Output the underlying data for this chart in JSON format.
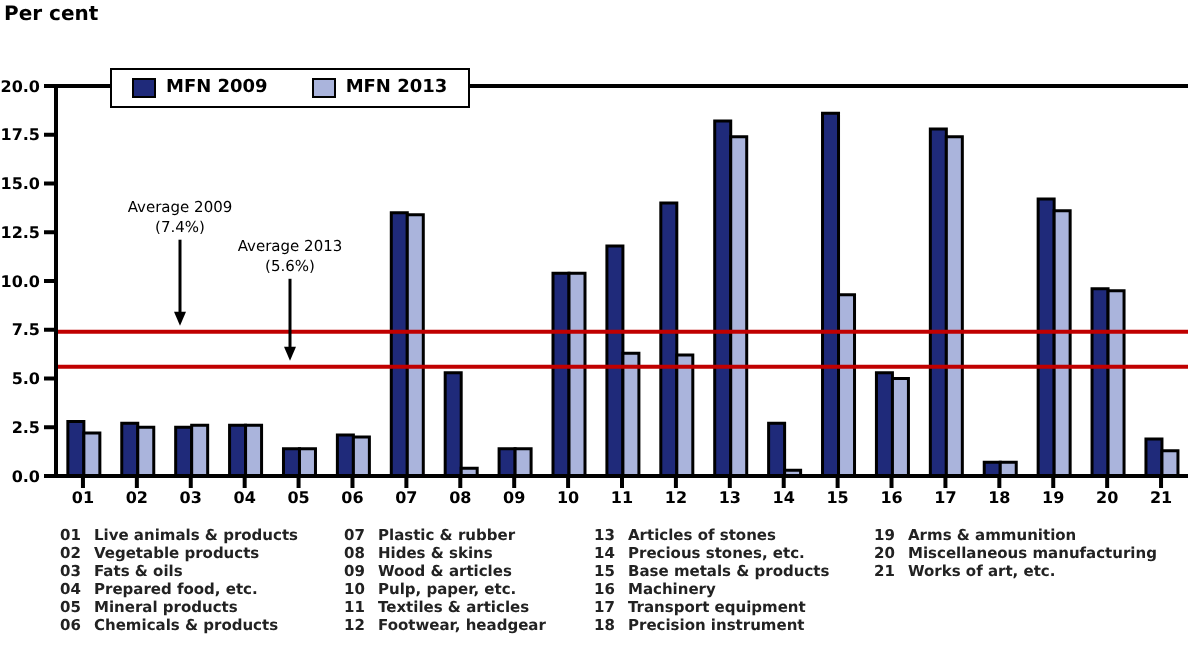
{
  "chart_data": {
    "type": "bar",
    "ylabel": "Per cent",
    "categories": [
      "01",
      "02",
      "03",
      "04",
      "05",
      "06",
      "07",
      "08",
      "09",
      "10",
      "11",
      "12",
      "13",
      "14",
      "15",
      "16",
      "17",
      "18",
      "19",
      "20",
      "21"
    ],
    "series": [
      {
        "name": "MFN 2009",
        "color": "#1f2a7a",
        "values": [
          2.8,
          2.7,
          2.5,
          2.6,
          1.4,
          2.1,
          13.5,
          5.3,
          1.4,
          10.4,
          11.8,
          14.0,
          18.2,
          2.7,
          18.6,
          5.3,
          17.8,
          0.7,
          14.2,
          9.6,
          1.9
        ]
      },
      {
        "name": "MFN 2013",
        "color": "#aab4dc",
        "values": [
          2.2,
          2.5,
          2.6,
          2.6,
          1.4,
          2.0,
          13.4,
          0.4,
          1.4,
          10.4,
          6.3,
          6.2,
          17.4,
          0.3,
          9.3,
          5.0,
          17.4,
          0.7,
          13.6,
          9.5,
          1.3
        ]
      }
    ],
    "ylim": [
      0,
      20
    ],
    "yticks": [
      {
        "value": 0,
        "label": "0.0"
      },
      {
        "value": 2.5,
        "label": "2.5"
      },
      {
        "value": 5,
        "label": "5.0"
      },
      {
        "value": 7.5,
        "label": "7.5"
      },
      {
        "value": 10,
        "label": "10.0"
      },
      {
        "value": 12.5,
        "label": "12.5"
      },
      {
        "value": 15,
        "label": "15.0"
      },
      {
        "value": 17.5,
        "label": "17.5"
      },
      {
        "value": 20,
        "label": "20.0"
      }
    ],
    "ref_lines": [
      {
        "axis": "y",
        "value": 7.4,
        "label": "Average 2009\n(7.4%)",
        "color": "#c00000"
      },
      {
        "axis": "y",
        "value": 5.6,
        "label": "Average 2013\n(5.6%)",
        "color": "#c00000"
      }
    ],
    "legend": "top left",
    "grid": false,
    "annotations": [
      "01  Live animals & products",
      "02  Vegetable products",
      "03  Fats & oils",
      "04  Prepared food, etc.",
      "05  Mineral products",
      "06  Chemicals & products",
      "07  Plastic & rubber",
      "08  Hides & skins",
      "09  Wood & articles",
      "10  Pulp, paper, etc.",
      "11  Textiles & articles",
      "12  Footwear, headgear",
      "13  Articles of stones",
      "14  Precious stones, etc.",
      "15  Base metals & products",
      "16  Machinery",
      "17  Transport equipment",
      "18  Precision instrument",
      "19  Arms & ammunition",
      "20  Miscellaneous manufacturing",
      "21  Works of art, etc."
    ]
  }
}
